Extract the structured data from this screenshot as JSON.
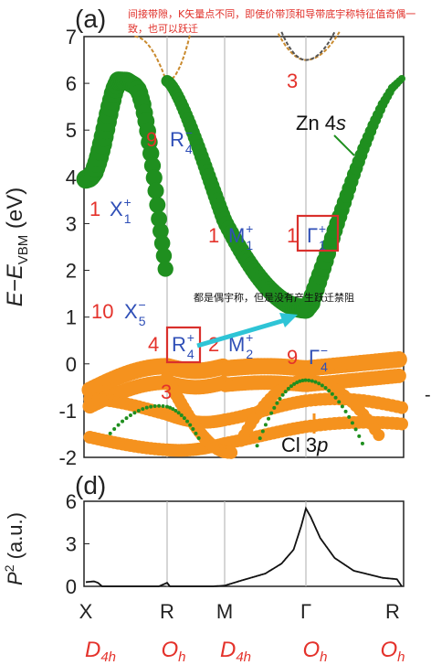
{
  "chart_data": [
    {
      "type": "line",
      "panel_label": "(a)",
      "ylabel_main": "E−E",
      "ylabel_sub": "VBM",
      "ylabel_unit": " (eV)",
      "ylim": [
        -2,
        7
      ],
      "yticks": [
        "-2",
        "-1",
        "0",
        "1",
        "2",
        "3",
        "4",
        "5",
        "6",
        "7"
      ],
      "x_kpoints": [
        "X",
        "R",
        "M",
        "Γ",
        "R"
      ],
      "annotations": {
        "zn_label_main": "Zn 4",
        "zn_label_it": "s",
        "cl_label_main": "Cl 3",
        "cl_label_it": "p",
        "deg_3_top": "3",
        "deg_9_r": "9",
        "r4m_sym": "R",
        "r4m_sub": "4",
        "r4m_sup": "−",
        "deg_1_x": "1",
        "x1p_sym": "X",
        "x1p_sub": "1",
        "x1p_sup": "+",
        "deg_1_m": "1",
        "m1p_sym": "M",
        "m1p_sub": "1",
        "m1p_sup": "+",
        "deg_1_g": "1",
        "g1p_sym": "Γ",
        "g1p_sub": "1",
        "g1p_sup": "+",
        "deg_10": "10",
        "x5m_sym": "X",
        "x5m_sub": "5",
        "x5m_sup": "−",
        "deg_4": "4",
        "r4p_sym": "R",
        "r4p_sub": "4",
        "r4p_sup": "+",
        "deg_2": "2",
        "m2p_sym": "M",
        "m2p_sub": "2",
        "m2p_sup": "+",
        "deg_9_g": "9",
        "g4m_sym": "Γ",
        "g4m_sub": "4",
        "g4m_sup": "−",
        "deg_3_bottom": "3"
      },
      "series": [
        {
          "band": "conduction",
          "x": [
            0.0,
            0.05,
            0.1,
            0.15,
            0.2,
            0.25,
            0.3,
            0.35,
            0.4,
            0.45,
            0.5,
            0.55,
            0.6,
            0.65,
            0.7,
            0.75,
            0.8,
            0.85,
            0.9,
            0.95,
            1.0
          ],
          "y": [
            3.95,
            3.98,
            4.1,
            4.35,
            4.7,
            5.1,
            5.5,
            5.85,
            6.05,
            6.05,
            6.05,
            6.0,
            5.95,
            5.85,
            5.55,
            5.1,
            4.5,
            3.85,
            3.1,
            2.45,
            1.75
          ]
        },
        {
          "band": "conduction-2",
          "x": [
            3.0,
            3.05,
            3.1,
            3.2,
            3.3,
            3.4,
            3.5,
            3.6,
            3.7,
            3.8,
            3.9,
            4.0
          ],
          "y": [
            1.18,
            1.3,
            1.6,
            2.2,
            2.85,
            3.45,
            4.05,
            4.6,
            5.1,
            5.55,
            5.9,
            6.1
          ]
        }
      ]
    },
    {
      "type": "line",
      "panel_label": "(d)",
      "ylabel_main": "P",
      "ylabel_sup": "2",
      "ylabel_unit": " (a.u.)",
      "ylim": [
        0,
        6
      ],
      "yticks": [
        "0",
        "3",
        "6"
      ],
      "x_kpoints": [
        "X",
        "R",
        "M",
        "Γ",
        "R"
      ],
      "site_symmetry": [
        "D",
        "O",
        "D",
        "O",
        "O"
      ],
      "site_symmetry_sub": [
        "4h",
        "h",
        "4h",
        "h",
        "h"
      ],
      "series": [
        {
          "x": [
            0.0,
            0.1,
            0.15,
            0.2,
            0.9,
            1.0,
            1.05,
            1.1,
            1.2,
            1.5,
            1.8,
            2.0,
            2.2,
            2.5,
            2.7,
            2.85,
            2.95,
            3.0,
            3.05,
            3.15,
            3.3,
            3.5,
            3.8,
            3.95,
            4.0
          ],
          "y": [
            0.3,
            0.35,
            0.25,
            0.0,
            0.0,
            0.25,
            0.0,
            0.0,
            0.0,
            0.0,
            0.0,
            0.05,
            0.4,
            0.9,
            1.6,
            2.6,
            4.4,
            5.5,
            4.9,
            3.4,
            2.0,
            1.1,
            0.6,
            0.5,
            0.0
          ]
        }
      ]
    }
  ],
  "notes": {
    "top_note": "间接带隙，K矢量点不同，即使价带顶和导带底宇称特征值奇偶一致，也可以跃迁",
    "middle_note": "都是偶宇称，但是没有产生跃迁禁阻"
  },
  "colors": {
    "green": "#1f8f1f",
    "orange": "#f5921e",
    "red_text": "#e4322b",
    "blue_text": "#2f4fb7",
    "box": "#d9302c",
    "arrow": "#2ec4d6"
  }
}
